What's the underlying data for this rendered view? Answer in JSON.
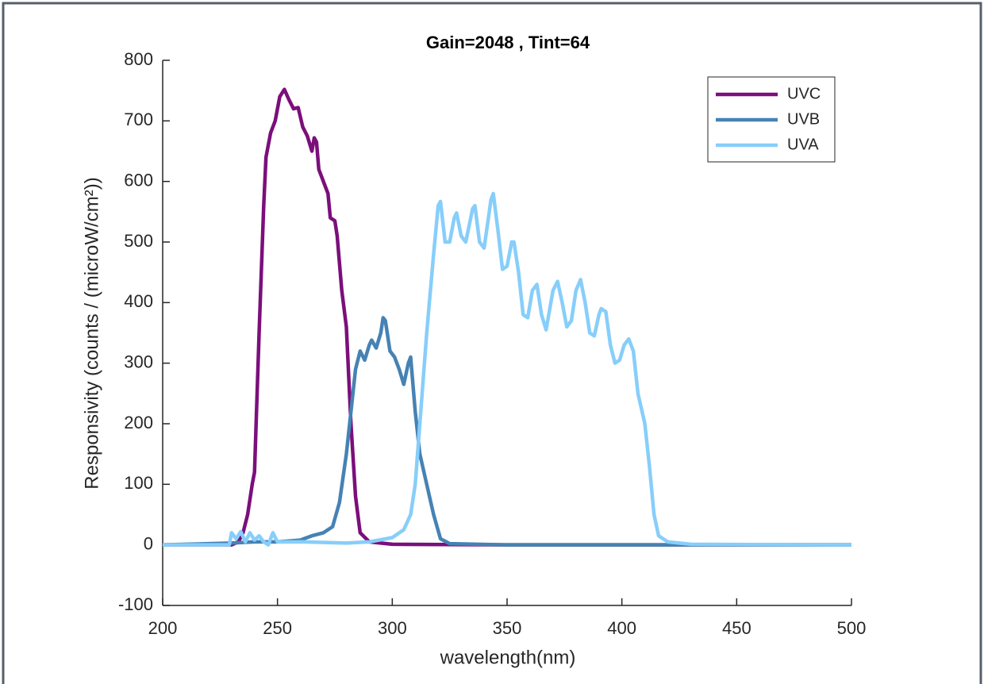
{
  "chart_data": {
    "type": "line",
    "title": "Gain=2048  ,  Tint=64",
    "xlabel": "wavelength(nm)",
    "ylabel": "Responsivity (counts / (microW/cm²))",
    "xlim": [
      200,
      500
    ],
    "xticks": [
      200,
      250,
      300,
      350,
      400,
      450,
      500
    ],
    "ylim": [
      -100,
      800
    ],
    "yticks": [
      -100,
      0,
      100,
      200,
      300,
      400,
      500,
      600,
      700,
      800
    ],
    "legend": "upper-right",
    "series": [
      {
        "name": "UVC",
        "color": "#7b0f7b",
        "x": [
          200,
          230,
          233,
          235,
          237,
          239,
          240,
          242,
          244,
          245,
          247,
          249,
          251,
          253,
          255,
          257,
          259,
          261,
          263,
          265,
          266,
          267,
          268,
          270,
          272,
          273,
          275,
          276,
          278,
          280,
          282,
          284,
          286,
          290,
          300,
          350,
          500
        ],
        "values": [
          0,
          0,
          5,
          20,
          50,
          100,
          120,
          350,
          560,
          640,
          680,
          700,
          740,
          752,
          735,
          720,
          722,
          690,
          675,
          650,
          672,
          665,
          620,
          600,
          580,
          540,
          535,
          510,
          420,
          360,
          200,
          80,
          20,
          5,
          1,
          0,
          0
        ]
      },
      {
        "name": "UVB",
        "color": "#4682b4",
        "x": [
          200,
          230,
          240,
          250,
          260,
          265,
          270,
          274,
          277,
          280,
          282,
          284,
          286,
          288,
          290,
          291,
          293,
          295,
          296,
          297,
          299,
          301,
          303,
          305,
          307,
          308,
          310,
          312,
          315,
          318,
          321,
          325,
          350,
          500
        ],
        "values": [
          0,
          3,
          5,
          5,
          8,
          15,
          20,
          30,
          70,
          150,
          220,
          290,
          320,
          305,
          330,
          338,
          325,
          350,
          375,
          370,
          320,
          310,
          290,
          265,
          300,
          310,
          220,
          150,
          100,
          50,
          10,
          2,
          0,
          0
        ]
      },
      {
        "name": "UVA",
        "color": "#87cefa",
        "x": [
          200,
          229,
          230,
          232,
          234,
          236,
          238,
          240,
          242,
          244,
          246,
          248,
          250,
          260,
          280,
          290,
          300,
          305,
          308,
          310,
          312,
          315,
          318,
          320,
          321,
          323,
          325,
          327,
          328,
          330,
          332,
          335,
          336,
          338,
          340,
          343,
          344,
          346,
          348,
          350,
          352,
          353,
          355,
          357,
          359,
          361,
          363,
          365,
          367,
          370,
          372,
          374,
          376,
          378,
          380,
          382,
          384,
          386,
          388,
          390,
          391,
          393,
          395,
          397,
          399,
          401,
          403,
          405,
          407,
          410,
          412,
          414,
          416,
          420,
          430,
          500
        ],
        "values": [
          0,
          0,
          20,
          10,
          22,
          5,
          20,
          8,
          15,
          5,
          0,
          20,
          5,
          5,
          3,
          5,
          12,
          25,
          50,
          100,
          200,
          350,
          480,
          560,
          567,
          500,
          500,
          540,
          548,
          510,
          500,
          555,
          560,
          500,
          490,
          570,
          580,
          520,
          455,
          460,
          500,
          500,
          450,
          380,
          375,
          420,
          430,
          380,
          355,
          420,
          435,
          400,
          360,
          370,
          420,
          438,
          400,
          350,
          345,
          380,
          390,
          385,
          330,
          300,
          305,
          330,
          340,
          320,
          250,
          200,
          130,
          50,
          15,
          5,
          1,
          0
        ]
      }
    ]
  }
}
